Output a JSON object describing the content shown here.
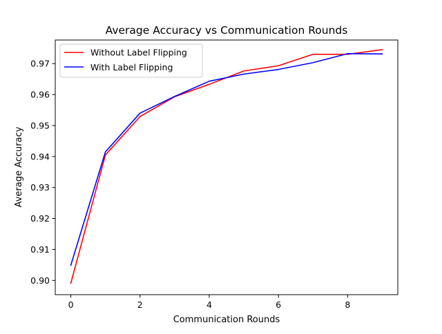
{
  "chart_data": {
    "type": "line",
    "title": "Average Accuracy vs Communication Rounds",
    "xlabel": "Communication Rounds",
    "ylabel": "Average Accuracy",
    "x": [
      0,
      1,
      2,
      3,
      4,
      5,
      6,
      7,
      8,
      9
    ],
    "xlim": [
      -0.45,
      9.45
    ],
    "ylim": [
      0.8954,
      0.9776
    ],
    "xticks": [
      0,
      2,
      4,
      6,
      8
    ],
    "xtick_labels": [
      "0",
      "2",
      "4",
      "6",
      "8"
    ],
    "yticks": [
      0.9,
      0.91,
      0.92,
      0.93,
      0.94,
      0.95,
      0.96,
      0.97
    ],
    "ytick_labels": [
      "0.90",
      "0.91",
      "0.92",
      "0.93",
      "0.94",
      "0.95",
      "0.96",
      "0.97"
    ],
    "grid": false,
    "legend_position": "top-left",
    "series": [
      {
        "name": "Without Label Flipping",
        "color": "#ff0000",
        "values": [
          0.8991,
          0.9405,
          0.9529,
          0.9593,
          0.9633,
          0.9676,
          0.9693,
          0.973,
          0.973,
          0.9745
        ]
      },
      {
        "name": "With Label Flipping",
        "color": "#0000ff",
        "values": [
          0.9049,
          0.9415,
          0.954,
          0.9594,
          0.9643,
          0.9666,
          0.9681,
          0.9703,
          0.9732,
          0.9731
        ]
      }
    ]
  }
}
